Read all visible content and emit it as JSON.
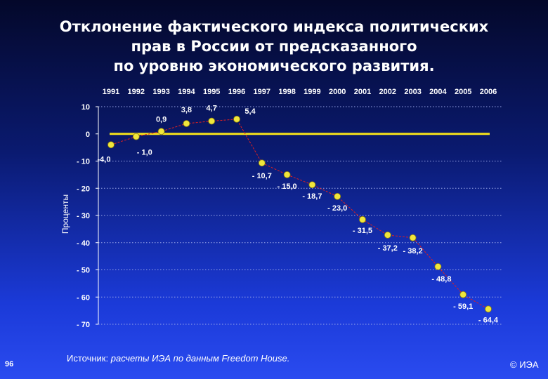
{
  "title_lines": [
    "Отклонение фактического индекса политических",
    "прав в России от предсказанного",
    "по уровню экономического развития."
  ],
  "footer": {
    "source_label": "Источник:",
    "source_text": "расчеты ИЭА по данным Freedom House.",
    "page_number": "96",
    "copyright": "© ИЭА"
  },
  "colors": {
    "zero_line": "#f5e21a",
    "data_line": "#e02020",
    "marker_fill": "#f0e63c",
    "grid": "#9aa6e8"
  },
  "chart_data": {
    "type": "line",
    "title": "Отклонение фактического индекса политических прав в России от предсказанного по уровню экономического развития.",
    "ylabel": "Проценты",
    "xlabel": "",
    "x_position": "top",
    "categories": [
      "1991",
      "1992",
      "1993",
      "1994",
      "1995",
      "1996",
      "1997",
      "1998",
      "1999",
      "2000",
      "2001",
      "2002",
      "2003",
      "2004",
      "2005",
      "2006"
    ],
    "y_ticks": [
      10,
      0,
      -10,
      -20,
      -30,
      -40,
      -50,
      -60,
      -70
    ],
    "ylim": [
      -70,
      10
    ],
    "grid": "horizontal-dotted",
    "series": [
      {
        "values": [
          -4.0,
          -1.0,
          0.9,
          3.8,
          4.7,
          5.4,
          -10.7,
          -15.0,
          -18.7,
          -23.0,
          -31.5,
          -37.2,
          -38.2,
          -48.8,
          -59.1,
          -64.4
        ],
        "labels": [
          "-4,0",
          "-1,0",
          "0,9",
          "3,8",
          "4,7",
          "5,4",
          "-10,7",
          "-15,0",
          "-18,7",
          "-23,0",
          "-31,5",
          "-37,2",
          "-38,2",
          "-48,8",
          "-59,1",
          "-64,4"
        ]
      }
    ]
  }
}
